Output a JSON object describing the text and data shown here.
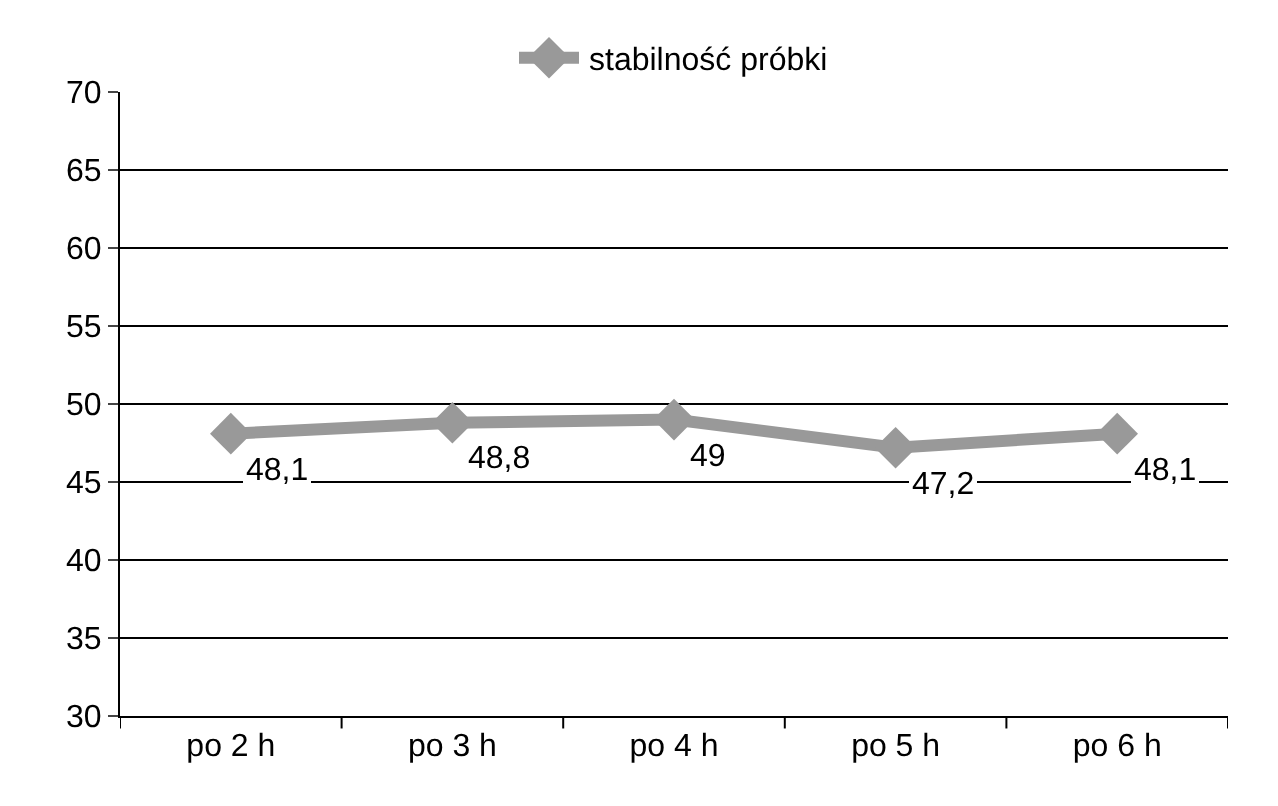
{
  "chart_data": {
    "type": "line",
    "categories": [
      "po 2 h",
      "po 3 h",
      "po 4 h",
      "po 5 h",
      "po 6 h"
    ],
    "series": [
      {
        "name": "stabilność próbki",
        "color": "#999999",
        "values": [
          48.1,
          48.8,
          49,
          47.2,
          48.1
        ],
        "value_labels": [
          "48,1",
          "48,8",
          "49",
          "47,2",
          "48,1"
        ]
      }
    ],
    "ylim": [
      30,
      70
    ],
    "yticks": [
      30,
      35,
      40,
      45,
      50,
      55,
      60,
      65,
      70
    ],
    "grid": "y",
    "legend": "top",
    "marker": "diamond",
    "line_style": "solid"
  }
}
